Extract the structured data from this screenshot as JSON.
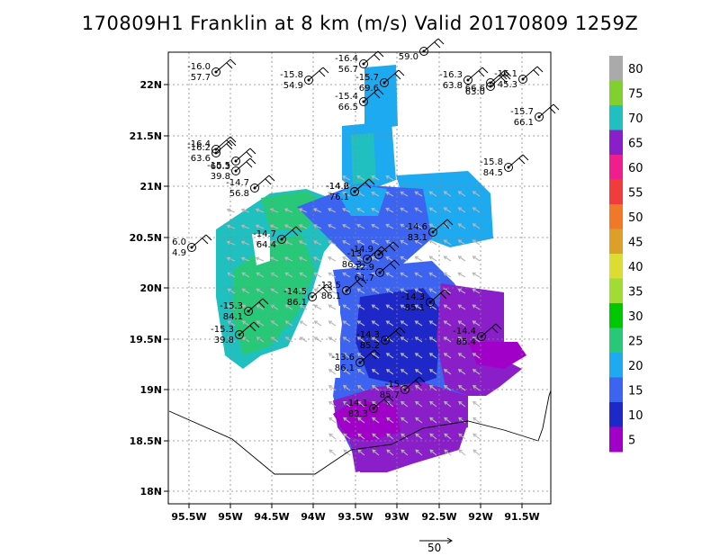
{
  "title": "170809H1 Franklin at 8 km (m/s) Valid 20170809 1259Z",
  "map": {
    "lon_ticks": [
      "95.5W",
      "95W",
      "94.5W",
      "94W",
      "93.5W",
      "93W",
      "92.5W",
      "92W",
      "91.5W"
    ],
    "lat_ticks": [
      "22N",
      "21.5N",
      "21N",
      "20.5N",
      "20N",
      "19.5N",
      "19N",
      "18.5N",
      "18N"
    ],
    "grid": true
  },
  "colorbar": {
    "labels": [
      "80",
      "75",
      "70",
      "65",
      "60",
      "55",
      "50",
      "45",
      "40",
      "35",
      "30",
      "25",
      "20",
      "15",
      "10",
      "5"
    ],
    "colors": [
      "#aaaaaa",
      "#80d030",
      "#20c0c0",
      "#8a1ec8",
      "#f01e8c",
      "#f03c3c",
      "#f07828",
      "#dca028",
      "#dcdc32",
      "#a0dc32",
      "#00c800",
      "#28c878",
      "#1eaaf0",
      "#3c64f0",
      "#1e28c8",
      "#a000c8"
    ]
  },
  "vector_reference": {
    "label": "50"
  },
  "stations": [
    {
      "top": "-16.0",
      "bottom": "57.7"
    },
    {
      "top": "-15.8",
      "bottom": "54.9"
    },
    {
      "top": "-16.4",
      "bottom": "56.7"
    },
    {
      "top": "",
      "bottom": "59.0"
    },
    {
      "top": "-15.7",
      "bottom": "69.6"
    },
    {
      "top": "-16.3",
      "bottom": "63.8"
    },
    {
      "top": "",
      "bottom": "66.6"
    },
    {
      "top": "-16.1",
      "bottom": "45.3"
    },
    {
      "top": "",
      "bottom": "63.0"
    },
    {
      "top": "-15.4",
      "bottom": "66.5"
    },
    {
      "top": "-15.7",
      "bottom": "66.1"
    },
    {
      "top": "-16.4",
      "bottom": ""
    },
    {
      "top": "-16.2",
      "bottom": "63.6"
    },
    {
      "top": "",
      "bottom": "60.3"
    },
    {
      "top": "-15.5",
      "bottom": "39.8"
    },
    {
      "top": "-14.7",
      "bottom": "56.8"
    },
    {
      "top": "-15.8",
      "bottom": "84.5"
    },
    {
      "top": "-14.2",
      "bottom": ""
    },
    {
      "top": "-14.6",
      "bottom": "76.1"
    },
    {
      "top": "-14.6",
      "bottom": "83.1"
    },
    {
      "top": "-14.7",
      "bottom": "64.4"
    },
    {
      "top": "6.0",
      "bottom": "4.9"
    },
    {
      "top": "-14.9",
      "bottom": ""
    },
    {
      "top": "-13",
      "bottom": "86.3"
    },
    {
      "top": "-12.9",
      "bottom": "61.7"
    },
    {
      "top": "-13.5",
      "bottom": "86.1"
    },
    {
      "top": "-14.5",
      "bottom": "86.1"
    },
    {
      "top": "-14.3",
      "bottom": "85.1"
    },
    {
      "top": "-15.3",
      "bottom": "84.1"
    },
    {
      "top": "-15.3",
      "bottom": "39.8"
    },
    {
      "top": "-14.3",
      "bottom": "85.2"
    },
    {
      "top": "-14.4",
      "bottom": "85.4"
    },
    {
      "top": "-13.6",
      "bottom": "86.1"
    },
    {
      "top": "-14.1",
      "bottom": "83.3"
    },
    {
      "top": "-15",
      "bottom": "85.7"
    }
  ]
}
